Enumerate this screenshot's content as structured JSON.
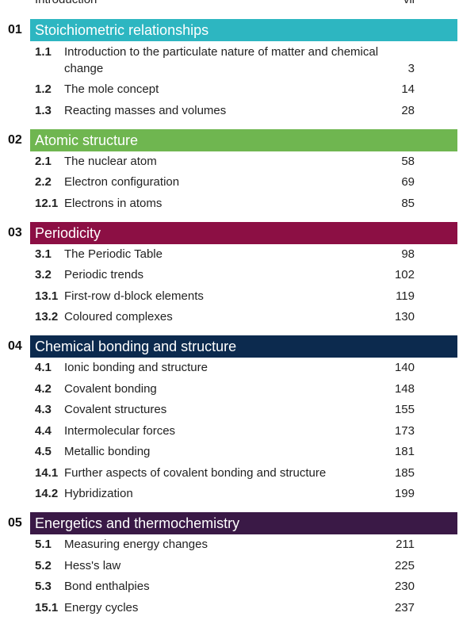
{
  "intro": {
    "title": "Introduction",
    "page": "vii"
  },
  "chapters": [
    {
      "number": "01",
      "title": "Stoichiometric relationships",
      "color": "#2db6c1",
      "sections": [
        {
          "number": "1.1",
          "title": "Introduction to the particulate nature of matter and chemical change",
          "page": "3"
        },
        {
          "number": "1.2",
          "title": "The mole concept",
          "page": "14"
        },
        {
          "number": "1.3",
          "title": "Reacting masses and volumes",
          "page": "28"
        }
      ]
    },
    {
      "number": "02",
      "title": "Atomic structure",
      "color": "#6fb650",
      "sections": [
        {
          "number": "2.1",
          "title": "The nuclear atom",
          "page": "58"
        },
        {
          "number": "2.2",
          "title": "Electron configuration",
          "page": "69"
        },
        {
          "number": "12.1",
          "title": "Electrons in atoms",
          "page": "85"
        }
      ]
    },
    {
      "number": "03",
      "title": "Periodicity",
      "color": "#8c0f44",
      "sections": [
        {
          "number": "3.1",
          "title": "The Periodic Table",
          "page": "98"
        },
        {
          "number": "3.2",
          "title": "Periodic trends",
          "page": "102"
        },
        {
          "number": "13.1",
          "title": "First-row d-block elements",
          "page": "119"
        },
        {
          "number": "13.2",
          "title": "Coloured complexes",
          "page": "130"
        }
      ]
    },
    {
      "number": "04",
      "title": "Chemical bonding and structure",
      "color": "#0c2a4e",
      "sections": [
        {
          "number": "4.1",
          "title": "Ionic bonding and structure",
          "page": "140"
        },
        {
          "number": "4.2",
          "title": "Covalent bonding",
          "page": "148"
        },
        {
          "number": "4.3",
          "title": "Covalent structures",
          "page": "155"
        },
        {
          "number": "4.4",
          "title": "Intermolecular forces",
          "page": "173"
        },
        {
          "number": "4.5",
          "title": "Metallic bonding",
          "page": "181"
        },
        {
          "number": "14.1",
          "title": "Further aspects of covalent bonding and structure",
          "page": "185"
        },
        {
          "number": "14.2",
          "title": "Hybridization",
          "page": "199"
        }
      ]
    },
    {
      "number": "05",
      "title": "Energetics and thermochemistry",
      "color": "#3a1946",
      "sections": [
        {
          "number": "5.1",
          "title": "Measuring energy changes",
          "page": "211"
        },
        {
          "number": "5.2",
          "title": "Hess's law",
          "page": "225"
        },
        {
          "number": "5.3",
          "title": "Bond enthalpies",
          "page": "230"
        },
        {
          "number": "15.1",
          "title": "Energy cycles",
          "page": "237"
        }
      ]
    }
  ]
}
